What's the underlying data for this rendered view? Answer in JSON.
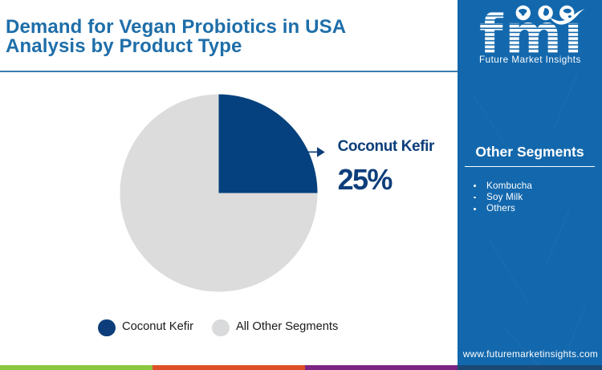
{
  "title": "Demand for Vegan Probiotics in USA\nAnalysis by Product Type",
  "callout": {
    "label": "Coconut Kefir",
    "value_text": "25%"
  },
  "legend": [
    {
      "label": "Coconut Kefir",
      "color": "#0d3e7b"
    },
    {
      "label": "All Other Segments",
      "color": "#d9dadb"
    }
  ],
  "sidebar": {
    "logo_text": "fmı",
    "logo_tagline": "Future Market Insights",
    "heading": "Other Segments",
    "items": [
      "Kombucha",
      "Soy Milk",
      "Others"
    ],
    "url": "www.futuremarketinsights.com"
  },
  "colors": {
    "accent_blue": "#1368ad",
    "title_blue": "#1e6ea9",
    "pie_main": "#05417e",
    "pie_rest": "#dcdcdc",
    "strip_green": "#8cc63f",
    "strip_orange": "#dd4f27",
    "strip_purple": "#7b2482",
    "strip_navy": "#1b4976"
  },
  "chart_data": {
    "type": "pie",
    "title": "Demand for Vegan Probiotics in USA Analysis by Product Type",
    "labels": [
      "Coconut Kefir",
      "All Other Segments"
    ],
    "values": [
      25,
      75
    ],
    "colors": [
      "#05417e",
      "#dcdcdc"
    ],
    "start_angle_deg": 0,
    "annotation": {
      "label": "Coconut Kefir",
      "value_text": "25%"
    },
    "legend_position": "bottom",
    "other_segments": [
      "Kombucha",
      "Soy Milk",
      "Others"
    ]
  }
}
